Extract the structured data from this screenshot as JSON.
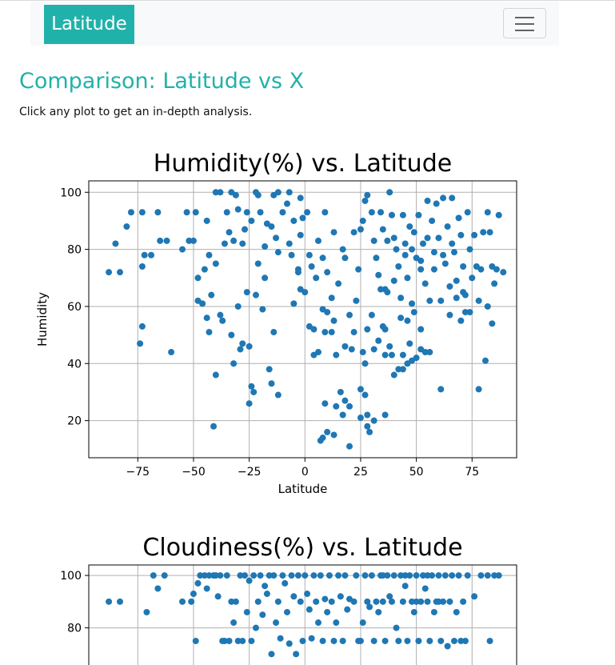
{
  "navbar": {
    "brand": "Latitude",
    "toggle_icon": "hamburger-icon"
  },
  "page": {
    "title": "Comparison: Latitude vs X",
    "subtitle": "Click any plot to get an in-depth analysis."
  },
  "chart_data": [
    {
      "type": "scatter",
      "title": "Humidity(%) vs. Latitude",
      "xlabel": "Latitude",
      "ylabel": "Humidity",
      "xlim": [
        -97,
        95
      ],
      "ylim": [
        7,
        104
      ],
      "xticks": [
        -75,
        -50,
        -25,
        0,
        25,
        50,
        75
      ],
      "yticks": [
        20,
        40,
        60,
        80,
        100
      ],
      "grid": true,
      "color": "#1f77b4",
      "points": [
        [
          -88,
          72
        ],
        [
          -83,
          72
        ],
        [
          -85,
          82
        ],
        [
          -80,
          88
        ],
        [
          -78,
          93
        ],
        [
          -73,
          93
        ],
        [
          -73,
          74
        ],
        [
          -72,
          78
        ],
        [
          -69,
          78
        ],
        [
          -66,
          93
        ],
        [
          -65,
          83
        ],
        [
          -62,
          83
        ],
        [
          -73,
          53
        ],
        [
          -74,
          47
        ],
        [
          -60,
          44
        ],
        [
          -55,
          80
        ],
        [
          -53,
          93
        ],
        [
          -52,
          83
        ],
        [
          -49,
          93
        ],
        [
          -50,
          83
        ],
        [
          -48,
          70
        ],
        [
          -48,
          62
        ],
        [
          -46,
          61
        ],
        [
          -44,
          90
        ],
        [
          -45,
          73
        ],
        [
          -43,
          78
        ],
        [
          -42,
          64
        ],
        [
          -43,
          51
        ],
        [
          -40,
          75
        ],
        [
          -38,
          57
        ],
        [
          -37,
          55
        ],
        [
          -36,
          82
        ],
        [
          -35,
          93
        ],
        [
          -34,
          86
        ],
        [
          -32,
          83
        ],
        [
          -31,
          99
        ],
        [
          -30,
          94
        ],
        [
          -28,
          82
        ],
        [
          -27,
          87
        ],
        [
          -26,
          93
        ],
        [
          -24,
          90
        ],
        [
          -22,
          100
        ],
        [
          -21,
          75
        ],
        [
          -20,
          93
        ],
        [
          -18,
          81
        ],
        [
          -17,
          89
        ],
        [
          -15,
          88
        ],
        [
          -13,
          84
        ],
        [
          -12,
          79
        ],
        [
          -10,
          93
        ],
        [
          -8,
          96
        ],
        [
          -7,
          82
        ],
        [
          -6,
          78
        ],
        [
          -5,
          90
        ],
        [
          -3,
          73
        ],
        [
          -2,
          85
        ],
        [
          -1,
          91
        ],
        [
          1,
          93
        ],
        [
          2,
          78
        ],
        [
          3,
          74
        ],
        [
          5,
          70
        ],
        [
          6,
          83
        ],
        [
          8,
          77
        ],
        [
          9,
          93
        ],
        [
          10,
          72
        ],
        [
          12,
          63
        ],
        [
          13,
          86
        ],
        [
          15,
          68
        ],
        [
          17,
          80
        ],
        [
          18,
          77
        ],
        [
          -40,
          100
        ],
        [
          -38,
          100
        ],
        [
          -33,
          100
        ],
        [
          -21,
          99
        ],
        [
          -14,
          99
        ],
        [
          -12,
          100
        ],
        [
          -7,
          100
        ],
        [
          -2,
          98
        ],
        [
          -41,
          18
        ],
        [
          -25,
          26
        ],
        [
          -24,
          32
        ],
        [
          -23,
          30
        ],
        [
          -15,
          33
        ],
        [
          -12,
          29
        ],
        [
          -16,
          38
        ],
        [
          -28,
          47
        ],
        [
          -25,
          46
        ],
        [
          -29,
          45
        ],
        [
          -33,
          50
        ],
        [
          -32,
          40
        ],
        [
          -40,
          36
        ],
        [
          -44,
          56
        ],
        [
          -30,
          60
        ],
        [
          -26,
          65
        ],
        [
          -22,
          64
        ],
        [
          -18,
          70
        ],
        [
          -19,
          59
        ],
        [
          -14,
          51
        ],
        [
          -5,
          61
        ],
        [
          -3,
          72
        ],
        [
          -2,
          66
        ],
        [
          0,
          65
        ],
        [
          2,
          53
        ],
        [
          4,
          52
        ],
        [
          4,
          43
        ],
        [
          6,
          44
        ],
        [
          8,
          59
        ],
        [
          9,
          51
        ],
        [
          10,
          58
        ],
        [
          12,
          51
        ],
        [
          13,
          55
        ],
        [
          14,
          43
        ],
        [
          16,
          30
        ],
        [
          18,
          46
        ],
        [
          20,
          57
        ],
        [
          21,
          45
        ],
        [
          22,
          51
        ],
        [
          7,
          13
        ],
        [
          8,
          14
        ],
        [
          10,
          16
        ],
        [
          13,
          15
        ],
        [
          9,
          26
        ],
        [
          14,
          25
        ],
        [
          17,
          22
        ],
        [
          18,
          27
        ],
        [
          20,
          11
        ],
        [
          20,
          25
        ],
        [
          25,
          21
        ],
        [
          25,
          31
        ],
        [
          27,
          29
        ],
        [
          28,
          18
        ],
        [
          28,
          22
        ],
        [
          29,
          16
        ],
        [
          31,
          20
        ],
        [
          36,
          22
        ],
        [
          26,
          44
        ],
        [
          27,
          40
        ],
        [
          28,
          52
        ],
        [
          30,
          57
        ],
        [
          31,
          45
        ],
        [
          33,
          48
        ],
        [
          35,
          53
        ],
        [
          36,
          52
        ],
        [
          38,
          46
        ],
        [
          39,
          43
        ],
        [
          40,
          36
        ],
        [
          42,
          38
        ],
        [
          44,
          38
        ],
        [
          46,
          40
        ],
        [
          48,
          41
        ],
        [
          50,
          42
        ],
        [
          52,
          45
        ],
        [
          54,
          44
        ],
        [
          56,
          44
        ],
        [
          61,
          31
        ],
        [
          78,
          31
        ],
        [
          81,
          41
        ],
        [
          22,
          86
        ],
        [
          23,
          62
        ],
        [
          24,
          73
        ],
        [
          25,
          87
        ],
        [
          26,
          90
        ],
        [
          27,
          97
        ],
        [
          28,
          99
        ],
        [
          30,
          93
        ],
        [
          31,
          83
        ],
        [
          32,
          77
        ],
        [
          33,
          71
        ],
        [
          34,
          93
        ],
        [
          35,
          87
        ],
        [
          36,
          66
        ],
        [
          37,
          83
        ],
        [
          38,
          100
        ],
        [
          39,
          92
        ],
        [
          40,
          84
        ],
        [
          41,
          80
        ],
        [
          42,
          74
        ],
        [
          43,
          63
        ],
        [
          44,
          92
        ],
        [
          45,
          82
        ],
        [
          46,
          70
        ],
        [
          47,
          88
        ],
        [
          48,
          61
        ],
        [
          49,
          86
        ],
        [
          50,
          77
        ],
        [
          51,
          92
        ],
        [
          52,
          73
        ],
        [
          53,
          82
        ],
        [
          54,
          68
        ],
        [
          55,
          97
        ],
        [
          56,
          62
        ],
        [
          57,
          90
        ],
        [
          58,
          73
        ],
        [
          59,
          96
        ],
        [
          60,
          84
        ],
        [
          61,
          62
        ],
        [
          62,
          98
        ],
        [
          63,
          75
        ],
        [
          64,
          88
        ],
        [
          65,
          67
        ],
        [
          66,
          98
        ],
        [
          67,
          79
        ],
        [
          68,
          63
        ],
        [
          69,
          91
        ],
        [
          70,
          85
        ],
        [
          71,
          74
        ],
        [
          72,
          64
        ],
        [
          73,
          93
        ],
        [
          74,
          80
        ],
        [
          75,
          70
        ],
        [
          76,
          85
        ],
        [
          77,
          74
        ],
        [
          78,
          62
        ],
        [
          79,
          73
        ],
        [
          80,
          86
        ],
        [
          82,
          93
        ],
        [
          83,
          86
        ],
        [
          84,
          74
        ],
        [
          85,
          68
        ],
        [
          86,
          73
        ],
        [
          87,
          92
        ],
        [
          89,
          72
        ],
        [
          82,
          60
        ],
        [
          84,
          54
        ],
        [
          70,
          55
        ],
        [
          72,
          58
        ],
        [
          65,
          57
        ],
        [
          45,
          78
        ],
        [
          48,
          80
        ],
        [
          52,
          76
        ],
        [
          55,
          84
        ],
        [
          58,
          79
        ],
        [
          62,
          78
        ],
        [
          66,
          82
        ],
        [
          68,
          69
        ],
        [
          71,
          65
        ],
        [
          74,
          58
        ],
        [
          34,
          66
        ],
        [
          37,
          65
        ],
        [
          40,
          69
        ],
        [
          43,
          56
        ],
        [
          46,
          55
        ],
        [
          49,
          58
        ],
        [
          52,
          52
        ],
        [
          44,
          43
        ],
        [
          47,
          47
        ],
        [
          36,
          43
        ]
      ]
    },
    {
      "type": "scatter",
      "title": "Cloudiness(%) vs. Latitude",
      "xlabel": "",
      "ylabel": "",
      "xlim": [
        -97,
        95
      ],
      "ylim": [
        0,
        104
      ],
      "xticks": [
        -75,
        -50,
        -25,
        0,
        25,
        50,
        75
      ],
      "yticks": [
        80,
        100
      ],
      "grid": true,
      "color": "#1f77b4",
      "points": [
        [
          -88,
          90
        ],
        [
          -83,
          90
        ],
        [
          -71,
          86
        ],
        [
          -68,
          100
        ],
        [
          -66,
          95
        ],
        [
          -63,
          100
        ],
        [
          -55,
          90
        ],
        [
          -51,
          90
        ],
        [
          -50,
          93
        ],
        [
          -49,
          75
        ],
        [
          -48,
          97
        ],
        [
          -47,
          100
        ],
        [
          -45,
          100
        ],
        [
          -44,
          95
        ],
        [
          -43,
          100
        ],
        [
          -41,
          100
        ],
        [
          -40,
          100
        ],
        [
          -39,
          92
        ],
        [
          -38,
          100
        ],
        [
          -37,
          75
        ],
        [
          -36,
          75
        ],
        [
          -35,
          100
        ],
        [
          -34,
          75
        ],
        [
          -33,
          90
        ],
        [
          -32,
          82
        ],
        [
          -31,
          90
        ],
        [
          -30,
          75
        ],
        [
          -29,
          100
        ],
        [
          -28,
          75
        ],
        [
          -27,
          100
        ],
        [
          -26,
          86
        ],
        [
          -25,
          98
        ],
        [
          -24,
          75
        ],
        [
          -23,
          100
        ],
        [
          -22,
          80
        ],
        [
          -21,
          90
        ],
        [
          -20,
          100
        ],
        [
          -19,
          85
        ],
        [
          -18,
          96
        ],
        [
          -17,
          93
        ],
        [
          -16,
          100
        ],
        [
          -15,
          70
        ],
        [
          -14,
          100
        ],
        [
          -13,
          82
        ],
        [
          -12,
          90
        ],
        [
          -11,
          76
        ],
        [
          -10,
          100
        ],
        [
          -9,
          97
        ],
        [
          -8,
          86
        ],
        [
          -7,
          74
        ],
        [
          -6,
          100
        ],
        [
          -5,
          92
        ],
        [
          -4,
          70
        ],
        [
          -3,
          100
        ],
        [
          -2,
          90
        ],
        [
          -1,
          75
        ],
        [
          0,
          100
        ],
        [
          1,
          93
        ],
        [
          2,
          87
        ],
        [
          3,
          76
        ],
        [
          4,
          100
        ],
        [
          5,
          90
        ],
        [
          6,
          82
        ],
        [
          7,
          100
        ],
        [
          8,
          75
        ],
        [
          9,
          91
        ],
        [
          10,
          86
        ],
        [
          11,
          100
        ],
        [
          12,
          90
        ],
        [
          13,
          75
        ],
        [
          14,
          82
        ],
        [
          15,
          100
        ],
        [
          16,
          92
        ],
        [
          17,
          75
        ],
        [
          18,
          100
        ],
        [
          19,
          87
        ],
        [
          20,
          91
        ],
        [
          22,
          90
        ],
        [
          23,
          100
        ],
        [
          24,
          75
        ],
        [
          25,
          75
        ],
        [
          26,
          82
        ],
        [
          27,
          100
        ],
        [
          28,
          90
        ],
        [
          29,
          88
        ],
        [
          30,
          100
        ],
        [
          31,
          75
        ],
        [
          32,
          90
        ],
        [
          33,
          86
        ],
        [
          34,
          100
        ],
        [
          35,
          90
        ],
        [
          36,
          75
        ],
        [
          37,
          100
        ],
        [
          38,
          92
        ],
        [
          39,
          90
        ],
        [
          40,
          100
        ],
        [
          41,
          80
        ],
        [
          42,
          75
        ],
        [
          43,
          100
        ],
        [
          44,
          90
        ],
        [
          45,
          96
        ],
        [
          46,
          75
        ],
        [
          47,
          100
        ],
        [
          48,
          90
        ],
        [
          49,
          86
        ],
        [
          50,
          100
        ],
        [
          51,
          75
        ],
        [
          52,
          90
        ],
        [
          53,
          100
        ],
        [
          54,
          95
        ],
        [
          55,
          90
        ],
        [
          56,
          75
        ],
        [
          57,
          100
        ],
        [
          58,
          86
        ],
        [
          59,
          90
        ],
        [
          60,
          100
        ],
        [
          61,
          75
        ],
        [
          62,
          90
        ],
        [
          63,
          100
        ],
        [
          64,
          73
        ],
        [
          65,
          90
        ],
        [
          66,
          100
        ],
        [
          67,
          75
        ],
        [
          68,
          86
        ],
        [
          69,
          100
        ],
        [
          70,
          75
        ],
        [
          71,
          90
        ],
        [
          72,
          75
        ],
        [
          73,
          100
        ],
        [
          76,
          92
        ],
        [
          79,
          100
        ],
        [
          82,
          100
        ],
        [
          83,
          75
        ],
        [
          85,
          100
        ],
        [
          87,
          100
        ],
        [
          55,
          100
        ],
        [
          45,
          100
        ],
        [
          35,
          100
        ],
        [
          60,
          90
        ],
        [
          50,
          90
        ]
      ]
    }
  ]
}
